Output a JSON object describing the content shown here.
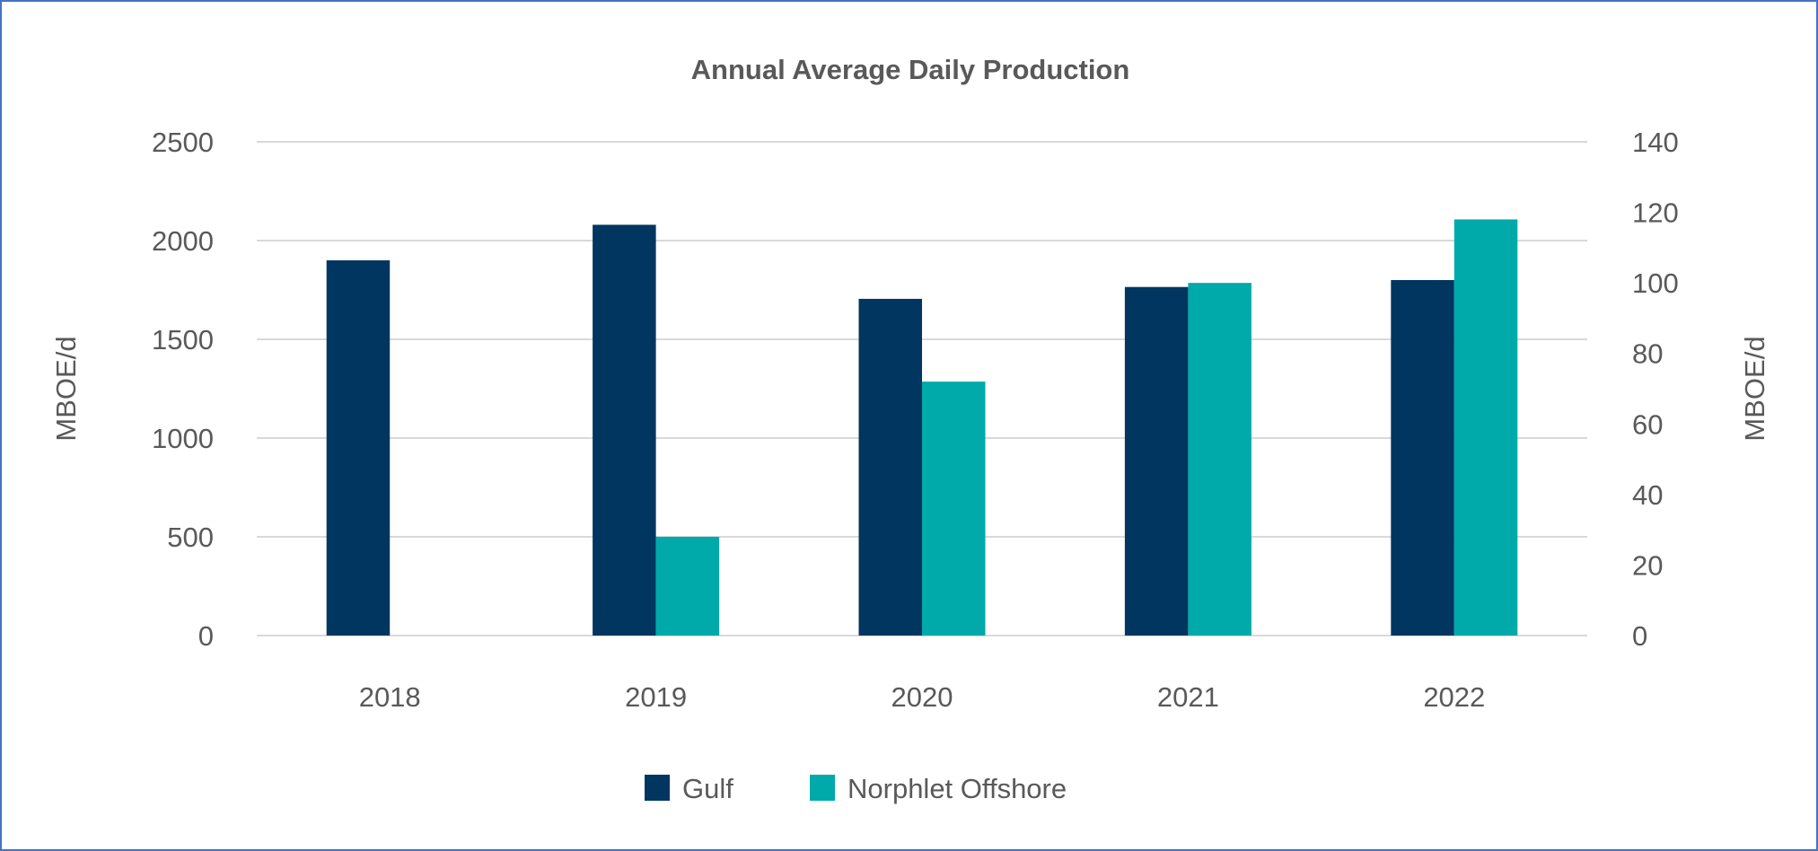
{
  "chart_data": {
    "type": "bar",
    "title": "Annual Average Daily Production",
    "categories": [
      "2018",
      "2019",
      "2020",
      "2021",
      "2022"
    ],
    "series": [
      {
        "name": "Gulf",
        "axis": "left",
        "color": "#003660",
        "values": [
          1900,
          2080,
          1705,
          1765,
          1800
        ]
      },
      {
        "name": "Norphlet Offshore",
        "axis": "right",
        "color": "#00AAAA",
        "values": [
          null,
          28,
          72,
          100,
          118
        ]
      }
    ],
    "ylabel": "MBOE/d",
    "ylim": [
      0,
      2500
    ],
    "yticks": [
      "0",
      "500",
      "1000",
      "1500",
      "2000",
      "2500"
    ],
    "y2label": "MBOE/d",
    "y2lim": [
      0,
      140
    ],
    "y2ticks": [
      "0",
      "20",
      "40",
      "60",
      "80",
      "100",
      "120",
      "140"
    ],
    "grid": true,
    "legend": "bottom"
  }
}
